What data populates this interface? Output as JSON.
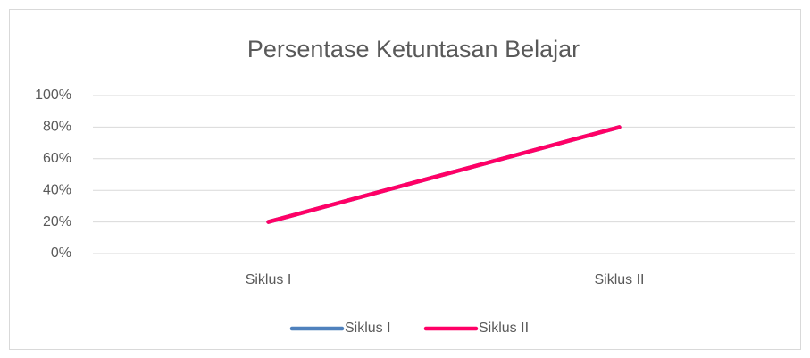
{
  "chart_data": {
    "type": "line",
    "title": "Persentase Ketuntasan Belajar",
    "categories": [
      "Siklus I",
      "Siklus II"
    ],
    "series": [
      {
        "name": "Siklus I",
        "color": "#4f81bd",
        "values": [
          20,
          80
        ]
      },
      {
        "name": "Siklus II",
        "color": "#ff0066",
        "values": [
          20,
          80
        ]
      }
    ],
    "ylim": [
      0,
      100
    ],
    "yticks": [
      {
        "value": 0,
        "label": "0%"
      },
      {
        "value": 20,
        "label": "20%"
      },
      {
        "value": 40,
        "label": "40%"
      },
      {
        "value": 60,
        "label": "60%"
      },
      {
        "value": 80,
        "label": "80%"
      },
      {
        "value": 100,
        "label": "100%"
      }
    ],
    "grid": true,
    "legend": "bottom"
  }
}
